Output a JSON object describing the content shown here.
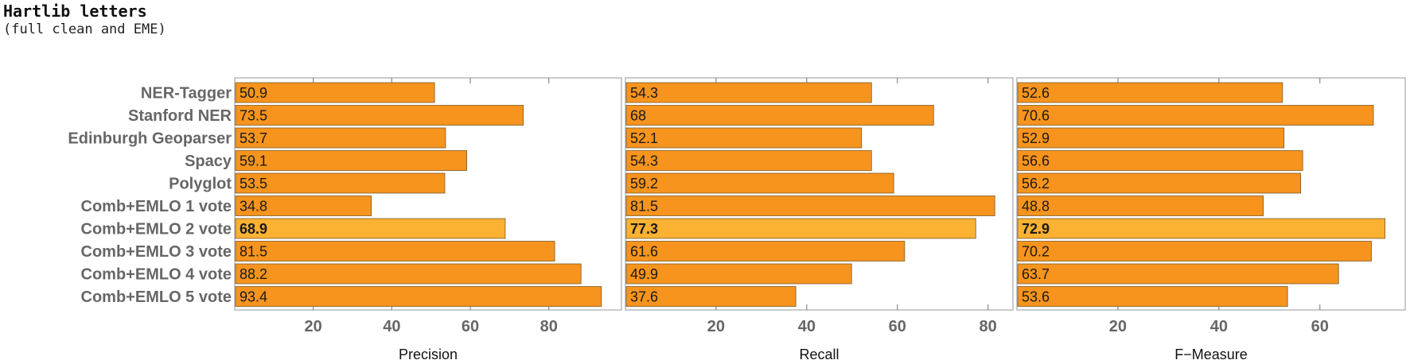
{
  "title": "Hartlib letters",
  "subtitle": "(full clean and EME)",
  "chart_data": {
    "type": "bar",
    "orientation": "horizontal",
    "categories": [
      "NER-Tagger",
      "Stanford NER",
      "Edinburgh Geoparser",
      "Spacy",
      "Polyglot",
      "Comb+EMLO 1 vote",
      "Comb+EMLO 2 vote",
      "Comb+EMLO 3 vote",
      "Comb+EMLO 4 vote",
      "Comb+EMLO 5 vote"
    ],
    "highlight_index": 6,
    "bar_color": "#f7941d",
    "highlight_color": "#fbb131",
    "panels": [
      {
        "xlabel": "Precision",
        "xlim": [
          0,
          98.5
        ],
        "xticks": [
          20,
          40,
          60,
          80
        ],
        "values": [
          50.9,
          73.5,
          53.7,
          59.1,
          53.5,
          34.8,
          68.9,
          81.5,
          88.2,
          93.4
        ],
        "labels": [
          "50.9",
          "73.5",
          "53.7",
          "59.1",
          "53.5",
          "34.8",
          "68.9",
          "81.5",
          "88.2",
          "93.4"
        ]
      },
      {
        "xlabel": "Recall",
        "xlim": [
          0,
          85.5
        ],
        "xticks": [
          20,
          40,
          60,
          80
        ],
        "values": [
          54.3,
          68,
          52.1,
          54.3,
          59.2,
          81.5,
          77.3,
          61.6,
          49.9,
          37.6
        ],
        "labels": [
          "54.3",
          "68",
          "52.1",
          "54.3",
          "59.2",
          "81.5",
          "77.3",
          "61.6",
          "49.9",
          "37.6"
        ]
      },
      {
        "xlabel": "F−Measure",
        "xlim": [
          0,
          76.9
        ],
        "xticks": [
          20,
          40,
          60
        ],
        "values": [
          52.6,
          70.6,
          52.9,
          56.6,
          56.2,
          48.8,
          72.9,
          70.2,
          63.7,
          53.6
        ],
        "labels": [
          "52.6",
          "70.6",
          "52.9",
          "56.6",
          "56.2",
          "48.8",
          "72.9",
          "70.2",
          "63.7",
          "53.6"
        ]
      }
    ]
  }
}
